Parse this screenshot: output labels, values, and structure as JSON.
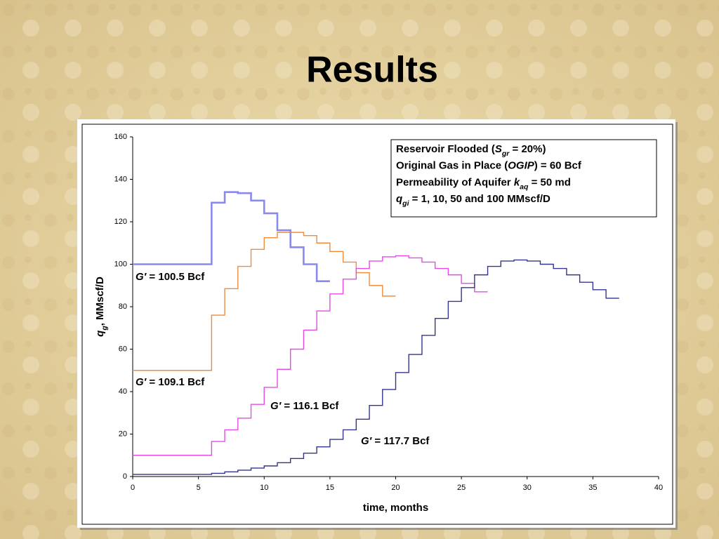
{
  "chart_data": {
    "type": "step",
    "title": "Results",
    "xlabel": "time, months",
    "ylabel": [
      {
        "text": "q",
        "style": "italic"
      },
      {
        "text": "g",
        "style": "sub"
      },
      {
        "text": ", MMscf/D",
        "style": "normal"
      }
    ],
    "xlim": [
      0,
      40
    ],
    "xticks": [
      0,
      5,
      10,
      15,
      20,
      25,
      30,
      35,
      40
    ],
    "ylim": [
      0,
      160
    ],
    "yticks": [
      0,
      20,
      40,
      60,
      80,
      100,
      120,
      140,
      160
    ],
    "grid": false,
    "series": [
      {
        "color": "#8a8aee",
        "x": [
          0,
          6,
          7,
          8,
          9,
          10,
          11,
          12,
          13,
          14,
          15
        ],
        "values": [
          100,
          129,
          134,
          133.5,
          130,
          124,
          116,
          108,
          100,
          92,
          92
        ]
      },
      {
        "color": "#f08c3c",
        "x": [
          0,
          6,
          7,
          8,
          9,
          10,
          11,
          12,
          13,
          14,
          15,
          16,
          17,
          18,
          19,
          20
        ],
        "values": [
          50,
          76,
          88.5,
          99,
          107,
          112.5,
          115,
          115,
          113.5,
          110,
          106,
          101,
          96,
          90,
          85,
          85
        ]
      },
      {
        "color": "#e84ae8",
        "x": [
          0,
          6,
          7,
          8,
          9,
          10,
          11,
          12,
          13,
          14,
          15,
          16,
          17,
          18,
          19,
          20,
          21,
          22,
          23,
          24,
          25,
          26,
          27
        ],
        "values": [
          10,
          16.5,
          22,
          27.5,
          34,
          42,
          50.5,
          60,
          69,
          78,
          86,
          93,
          98,
          101.5,
          103.5,
          104,
          103,
          101,
          98,
          95,
          91,
          87,
          87
        ]
      },
      {
        "color": "#35358f",
        "x": [
          0,
          6,
          7,
          8,
          9,
          10,
          11,
          12,
          13,
          14,
          15,
          16,
          17,
          18,
          19,
          20,
          21,
          22,
          23,
          24,
          25,
          26,
          27,
          28,
          29,
          30,
          31,
          32,
          33,
          34,
          35,
          36,
          37
        ],
        "values": [
          1,
          1.5,
          2.2,
          3,
          4,
          5,
          6.5,
          8.5,
          11,
          14,
          17.5,
          22,
          27,
          33.5,
          41,
          49,
          57.5,
          66.5,
          74.5,
          82.5,
          89,
          95,
          99,
          101.5,
          102,
          101.5,
          100,
          98,
          95,
          91.5,
          88,
          84,
          84
        ]
      }
    ],
    "annotations": [
      [
        {
          "text": "G′",
          "style": "italic"
        },
        {
          "text": " = 100.5 Bcf",
          "style": "normal"
        }
      ],
      [
        {
          "text": "G′",
          "style": "italic"
        },
        {
          "text": " = 109.1 Bcf",
          "style": "normal"
        }
      ],
      [
        {
          "text": "G′",
          "style": "italic"
        },
        {
          "text": " = 116.1 Bcf",
          "style": "normal"
        }
      ],
      [
        {
          "text": "G′",
          "style": "italic"
        },
        {
          "text": " = 117.7 Bcf",
          "style": "normal"
        }
      ]
    ],
    "legend_box": [
      [
        {
          "text": "Reservoir Flooded (",
          "style": "normal"
        },
        {
          "text": "S",
          "style": "italic"
        },
        {
          "text": "gr",
          "style": "sub"
        },
        {
          "text": " = 20%)",
          "style": "normal"
        }
      ],
      [
        {
          "text": "Original Gas in Place (",
          "style": "normal"
        },
        {
          "text": "OGIP",
          "style": "italic"
        },
        {
          "text": ") = 60 Bcf",
          "style": "normal"
        }
      ],
      [
        {
          "text": "Permeability of Aquifer ",
          "style": "normal"
        },
        {
          "text": "k",
          "style": "italic"
        },
        {
          "text": "aq",
          "style": "sub"
        },
        {
          "text": " = 50 md",
          "style": "normal"
        }
      ],
      [
        {
          "text": "q",
          "style": "italic"
        },
        {
          "text": "gi",
          "style": "sub"
        },
        {
          "text": " = 1, 10, 50 and 100 MMscf/D",
          "style": "normal"
        }
      ]
    ]
  }
}
